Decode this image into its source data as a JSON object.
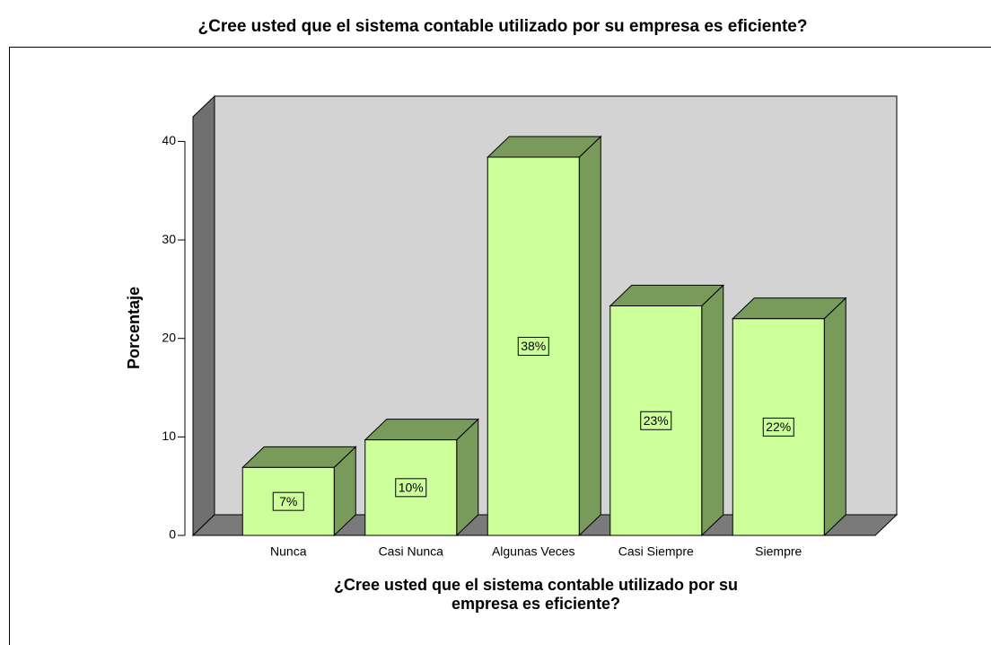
{
  "chart_data": {
    "type": "bar3d",
    "title": "¿Cree usted que el sistema contable utilizado por su empresa es eficiente?",
    "y_label": "Porcentaje",
    "x_label": [
      "¿Cree usted que el sistema contable utilizado por su",
      "empresa es eficiente?"
    ],
    "categories": [
      "Nunca",
      "Casi Nunca",
      "Algunas Veces",
      "Casi Siempre",
      "Siempre"
    ],
    "values": [
      6.9,
      9.7,
      38.4,
      23.3,
      22.0
    ],
    "value_labels": [
      "7%",
      "10%",
      "38%",
      "23%",
      "22%"
    ],
    "color": "#ccff99",
    "side_color": "#789a5a",
    "ylim": [
      0,
      42.5
    ],
    "yticks": [
      0,
      10,
      20,
      30,
      40
    ]
  }
}
